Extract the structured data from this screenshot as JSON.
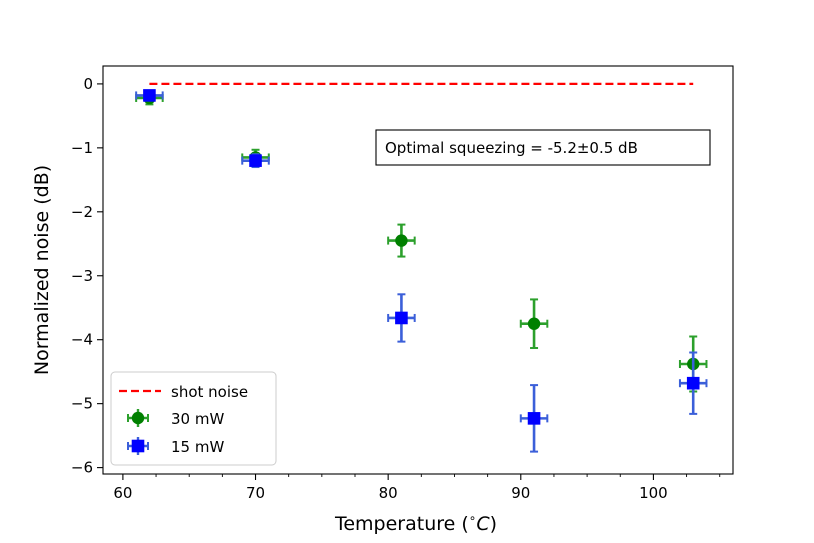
{
  "chart_data": {
    "type": "scatter",
    "title": "",
    "xlabel": "Temperature (",
    "xlabel_unit_super": "∘",
    "xlabel_unit_var": "C",
    "xlabel_close": ")",
    "ylabel": "Normalized noise (dB)",
    "xlim": [
      58.5,
      106
    ],
    "ylim": [
      -6.1,
      0.28
    ],
    "xticks": [
      60,
      70,
      80,
      90,
      100
    ],
    "xtick_labels": [
      "60",
      "70",
      "80",
      "90",
      "100"
    ],
    "yticks": [
      0,
      -1,
      -2,
      -3,
      -4,
      -5,
      -6
    ],
    "ytick_labels": [
      "0",
      "−1",
      "−2",
      "−3",
      "−4",
      "−5",
      "−6"
    ],
    "x_minor_step": 2.5,
    "shot_noise": {
      "name": "shot noise",
      "x": [
        62,
        103
      ],
      "y": [
        0,
        0
      ],
      "color": "#ff0000",
      "style": "dashed"
    },
    "series": [
      {
        "name": "30 mW",
        "marker": "circle",
        "color": "#008000",
        "errcolor": "#2ca02c",
        "x": [
          62,
          70,
          81,
          91,
          103
        ],
        "y": [
          -0.22,
          -1.15,
          -2.45,
          -3.75,
          -4.38
        ],
        "xerr": [
          1.0,
          1.0,
          1.0,
          1.0,
          1.0
        ],
        "yerr": [
          0.1,
          0.12,
          0.25,
          0.38,
          0.43
        ]
      },
      {
        "name": "15 mW",
        "marker": "square",
        "color": "#0000ff",
        "errcolor": "#3b5fd9",
        "x": [
          62,
          70,
          81,
          91,
          103
        ],
        "y": [
          -0.18,
          -1.2,
          -3.66,
          -5.23,
          -4.68
        ],
        "xerr": [
          1.0,
          1.0,
          1.0,
          1.0,
          1.0
        ],
        "yerr": [
          0.07,
          0.1,
          0.37,
          0.52,
          0.48
        ]
      }
    ],
    "annotation": "Optimal squeezing = -5.2±0.5 dB",
    "legend": {
      "placement": "lower-left",
      "entries": [
        "shot noise",
        "30 mW",
        "15 mW"
      ]
    }
  }
}
